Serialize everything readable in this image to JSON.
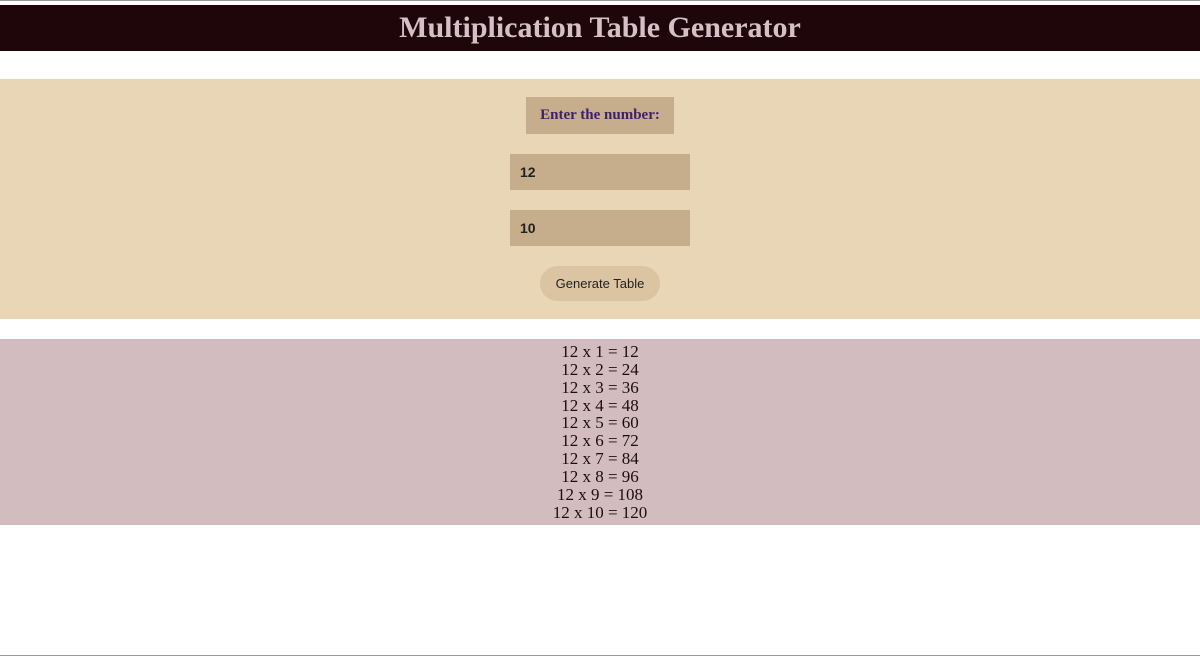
{
  "header": {
    "title": "Multiplication Table Generator"
  },
  "form": {
    "label": "Enter the number:",
    "number_value": "12",
    "count_value": "10",
    "button_label": "Generate Table"
  },
  "output": {
    "rows": [
      "12 x 1 = 12",
      "12 x 2 = 24",
      "12 x 3 = 36",
      "12 x 4 = 48",
      "12 x 5 = 60",
      "12 x 6 = 72",
      "12 x 7 = 84",
      "12 x 8 = 96",
      "12 x 9 = 108",
      "12 x 10 = 120"
    ]
  },
  "colors": {
    "header_bg": "#1f060b",
    "header_text": "#d6c0c7",
    "form_bg": "#e9d6b6",
    "label_bg": "#c6ad8b",
    "label_text": "#3e1f6b",
    "input_bg": "#c6ad8b",
    "button_bg": "#dbc4a1",
    "output_bg": "#d3bcbf",
    "output_text": "#1a0d10",
    "page_bg": "#ffffff"
  }
}
